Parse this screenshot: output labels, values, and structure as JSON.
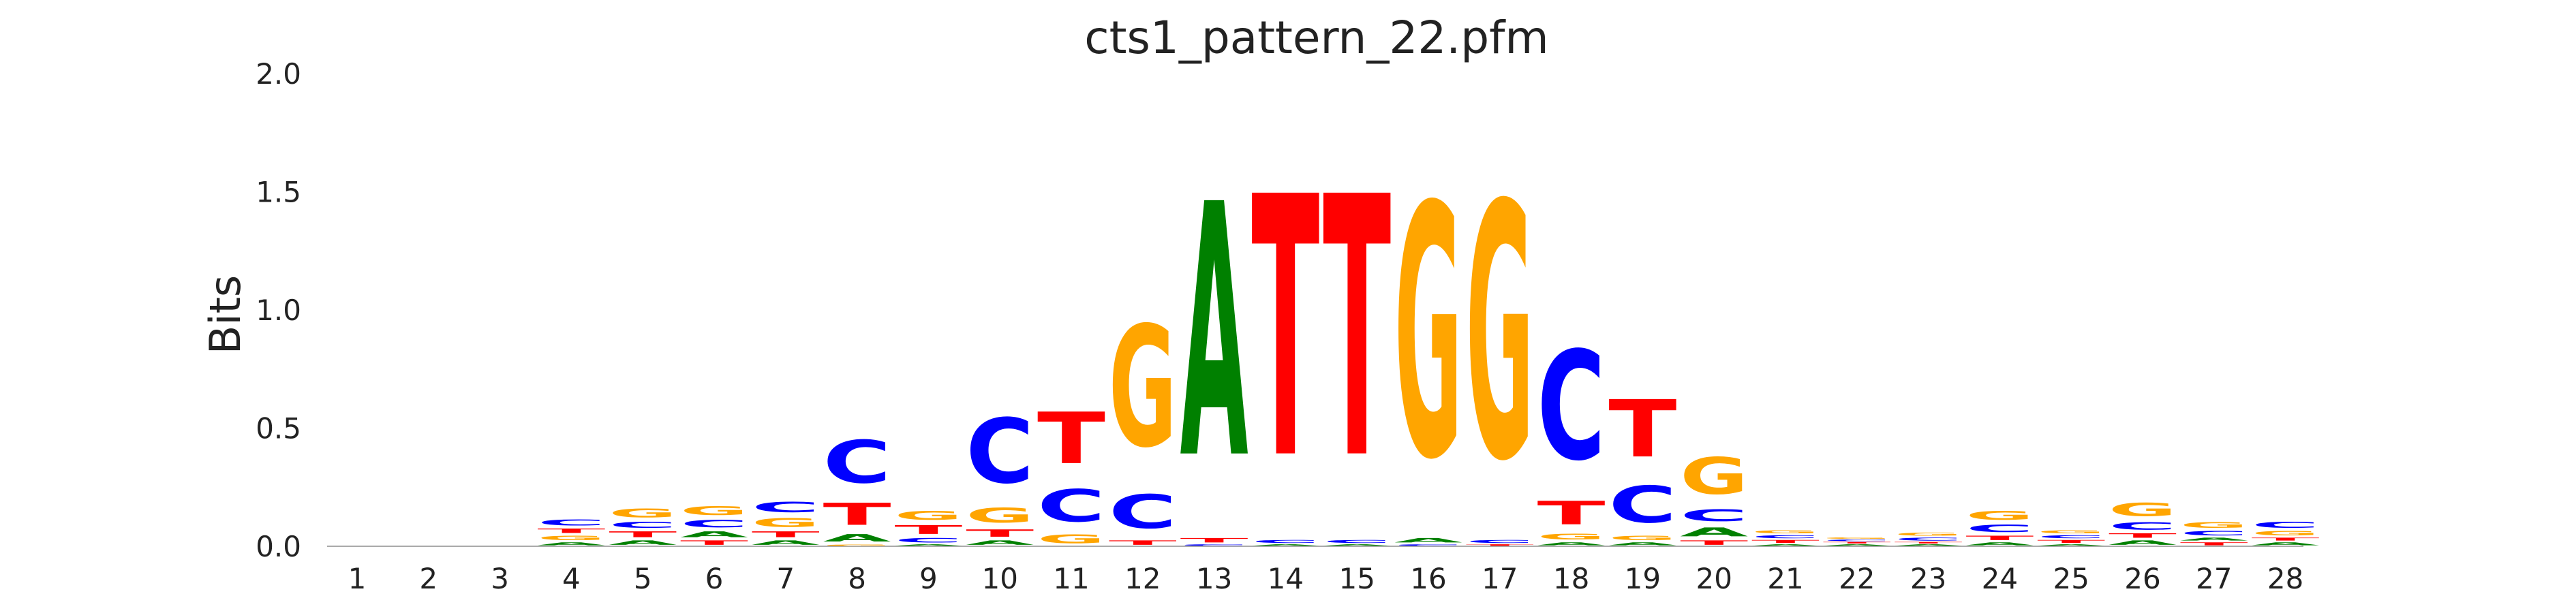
{
  "chart_data": {
    "type": "sequence-logo",
    "title": "cts1_pattern_22.pfm",
    "xlabel": "",
    "ylabel": "Bits",
    "ylim": [
      0,
      2.0
    ],
    "yticks": [
      "0.0",
      "0.5",
      "1.0",
      "1.5",
      "2.0"
    ],
    "positions": [
      "1",
      "2",
      "3",
      "4",
      "5",
      "6",
      "7",
      "8",
      "9",
      "10",
      "11",
      "12",
      "13",
      "14",
      "15",
      "16",
      "17",
      "18",
      "19",
      "20",
      "21",
      "22",
      "23",
      "24",
      "25",
      "26",
      "27",
      "28"
    ],
    "colors": {
      "A": "#008000",
      "C": "#0000ff",
      "G": "#ffa500",
      "T": "#ff0000"
    },
    "stacks": [
      [],
      [],
      [],
      [
        {
          "letter": "A",
          "bits": 0.02
        },
        {
          "letter": "G",
          "bits": 0.03
        },
        {
          "letter": "T",
          "bits": 0.03
        },
        {
          "letter": "C",
          "bits": 0.04
        }
      ],
      [
        {
          "letter": "A",
          "bits": 0.03
        },
        {
          "letter": "T",
          "bits": 0.04
        },
        {
          "letter": "C",
          "bits": 0.04
        },
        {
          "letter": "G",
          "bits": 0.06
        }
      ],
      [
        {
          "letter": "T",
          "bits": 0.03
        },
        {
          "letter": "A",
          "bits": 0.04
        },
        {
          "letter": "C",
          "bits": 0.05
        },
        {
          "letter": "G",
          "bits": 0.06
        }
      ],
      [
        {
          "letter": "A",
          "bits": 0.03
        },
        {
          "letter": "T",
          "bits": 0.04
        },
        {
          "letter": "G",
          "bits": 0.06
        },
        {
          "letter": "C",
          "bits": 0.07
        }
      ],
      [
        {
          "letter": "G",
          "bits": 0.01
        },
        {
          "letter": "A",
          "bits": 0.05
        },
        {
          "letter": "T",
          "bits": 0.15
        },
        {
          "letter": "C",
          "bits": 0.29
        }
      ],
      [
        {
          "letter": "A",
          "bits": 0.01
        },
        {
          "letter": "C",
          "bits": 0.03
        },
        {
          "letter": "T",
          "bits": 0.06
        },
        {
          "letter": "G",
          "bits": 0.06
        }
      ],
      [
        {
          "letter": "A",
          "bits": 0.03
        },
        {
          "letter": "T",
          "bits": 0.05
        },
        {
          "letter": "G",
          "bits": 0.1
        },
        {
          "letter": "C",
          "bits": 0.44
        }
      ],
      [
        {
          "letter": "G",
          "bits": 0.06
        },
        {
          "letter": "C",
          "bits": 0.22
        },
        {
          "letter": "T",
          "bits": 0.35
        }
      ],
      [
        {
          "letter": "T",
          "bits": 0.03
        },
        {
          "letter": "C",
          "bits": 0.23
        },
        {
          "letter": "G",
          "bits": 0.82
        }
      ],
      [
        {
          "letter": "C",
          "bits": 0.01
        },
        {
          "letter": "T",
          "bits": 0.03
        },
        {
          "letter": "A",
          "bits": 1.72
        }
      ],
      [
        {
          "letter": "A",
          "bits": 0.01
        },
        {
          "letter": "C",
          "bits": 0.02
        },
        {
          "letter": "T",
          "bits": 1.77
        }
      ],
      [
        {
          "letter": "A",
          "bits": 0.01
        },
        {
          "letter": "C",
          "bits": 0.02
        },
        {
          "letter": "T",
          "bits": 1.77
        }
      ],
      [
        {
          "letter": "C",
          "bits": 0.01
        },
        {
          "letter": "A",
          "bits": 0.03
        },
        {
          "letter": "G",
          "bits": 1.71
        }
      ],
      [
        {
          "letter": "T",
          "bits": 0.01
        },
        {
          "letter": "C",
          "bits": 0.02
        },
        {
          "letter": "G",
          "bits": 1.73
        }
      ],
      [
        {
          "letter": "A",
          "bits": 0.02
        },
        {
          "letter": "G",
          "bits": 0.04
        },
        {
          "letter": "T",
          "bits": 0.16
        },
        {
          "letter": "C",
          "bits": 0.74
        }
      ],
      [
        {
          "letter": "A",
          "bits": 0.02
        },
        {
          "letter": "G",
          "bits": 0.03
        },
        {
          "letter": "C",
          "bits": 0.25
        },
        {
          "letter": "T",
          "bits": 0.39
        }
      ],
      [
        {
          "letter": "T",
          "bits": 0.03
        },
        {
          "letter": "A",
          "bits": 0.06
        },
        {
          "letter": "C",
          "bits": 0.08
        },
        {
          "letter": "G",
          "bits": 0.25
        }
      ],
      [
        {
          "letter": "A",
          "bits": 0.01
        },
        {
          "letter": "T",
          "bits": 0.02
        },
        {
          "letter": "C",
          "bits": 0.02
        },
        {
          "letter": "G",
          "bits": 0.02
        }
      ],
      [
        {
          "letter": "A",
          "bits": 0.01
        },
        {
          "letter": "T",
          "bits": 0.01
        },
        {
          "letter": "C",
          "bits": 0.01
        },
        {
          "letter": "G",
          "bits": 0.01
        }
      ],
      [
        {
          "letter": "A",
          "bits": 0.01
        },
        {
          "letter": "T",
          "bits": 0.01
        },
        {
          "letter": "C",
          "bits": 0.02
        },
        {
          "letter": "G",
          "bits": 0.02
        }
      ],
      [
        {
          "letter": "A",
          "bits": 0.02
        },
        {
          "letter": "T",
          "bits": 0.03
        },
        {
          "letter": "C",
          "bits": 0.05
        },
        {
          "letter": "G",
          "bits": 0.06
        }
      ],
      [
        {
          "letter": "A",
          "bits": 0.01
        },
        {
          "letter": "T",
          "bits": 0.02
        },
        {
          "letter": "C",
          "bits": 0.02
        },
        {
          "letter": "G",
          "bits": 0.02
        }
      ],
      [
        {
          "letter": "A",
          "bits": 0.03
        },
        {
          "letter": "T",
          "bits": 0.03
        },
        {
          "letter": "C",
          "bits": 0.05
        },
        {
          "letter": "G",
          "bits": 0.09
        }
      ],
      [
        {
          "letter": "T",
          "bits": 0.02
        },
        {
          "letter": "A",
          "bits": 0.02
        },
        {
          "letter": "C",
          "bits": 0.03
        },
        {
          "letter": "G",
          "bits": 0.04
        }
      ],
      [
        {
          "letter": "A",
          "bits": 0.02
        },
        {
          "letter": "T",
          "bits": 0.02
        },
        {
          "letter": "G",
          "bits": 0.03
        },
        {
          "letter": "C",
          "bits": 0.04
        }
      ]
    ]
  }
}
